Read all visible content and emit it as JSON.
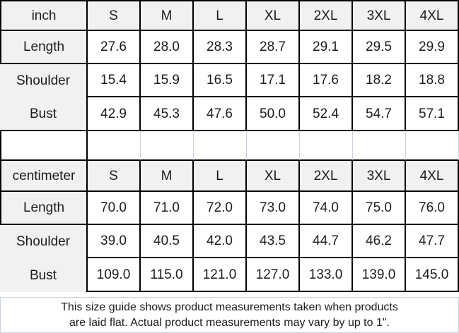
{
  "colors": {
    "table_border": "#000000",
    "faint_gridline": "#c9d4e0",
    "header_fill": "#f1f1f1",
    "text": "#1c1c1c"
  },
  "chart_data": [
    {
      "type": "table",
      "unit": "inch",
      "header": [
        "inch",
        "S",
        "M",
        "L",
        "XL",
        "2XL",
        "3XL",
        "4XL"
      ],
      "rows": [
        {
          "label": "Length",
          "values": [
            "27.6",
            "28.0",
            "28.3",
            "28.7",
            "29.1",
            "29.5",
            "29.9"
          ]
        },
        {
          "label": "Shoulder",
          "values": [
            "15.4",
            "15.9",
            "16.5",
            "17.1",
            "17.6",
            "18.2",
            "18.8"
          ]
        },
        {
          "label": "Bust",
          "values": [
            "42.9",
            "45.3",
            "47.6",
            "50.0",
            "52.4",
            "54.7",
            "57.1"
          ]
        }
      ]
    },
    {
      "type": "table",
      "unit": "centimeter",
      "header": [
        "centimeter",
        "S",
        "M",
        "L",
        "XL",
        "2XL",
        "3XL",
        "4XL"
      ],
      "rows": [
        {
          "label": "Length",
          "values": [
            "70.0",
            "71.0",
            "72.0",
            "73.0",
            "74.0",
            "75.0",
            "76.0"
          ]
        },
        {
          "label": "Shoulder",
          "values": [
            "39.0",
            "40.5",
            "42.0",
            "43.5",
            "44.7",
            "46.2",
            "47.7"
          ]
        },
        {
          "label": "Bust",
          "values": [
            "109.0",
            "115.0",
            "121.0",
            "127.0",
            "133.0",
            "139.0",
            "145.0"
          ]
        }
      ]
    }
  ],
  "footnote": {
    "line1": "This size guide shows product measurements taken when products",
    "line2": "are laid flat. Actual product measurements may vary by up to 1\"."
  }
}
